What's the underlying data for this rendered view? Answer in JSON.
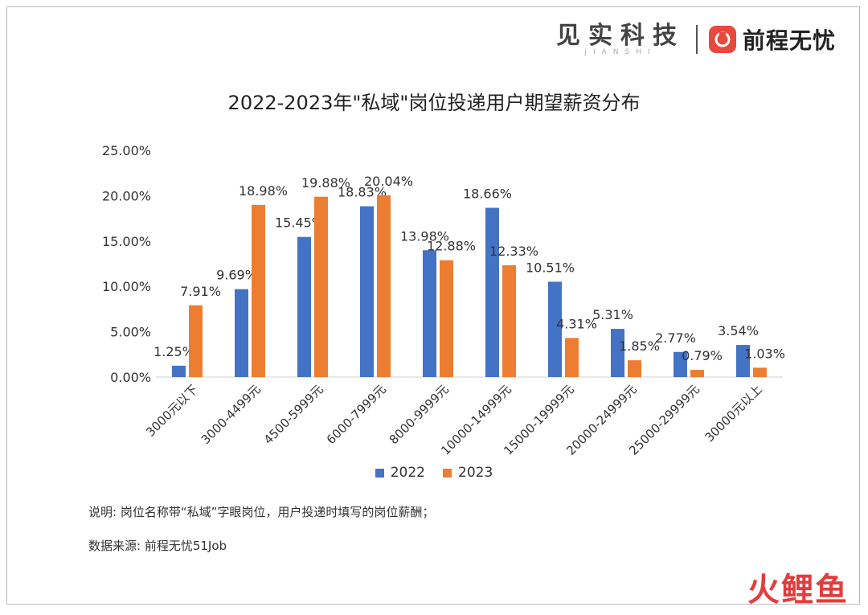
{
  "brand": {
    "left_name": "见实科技",
    "left_pinyin": "JIANSHI",
    "right_name": "前程无忧"
  },
  "notes": {
    "explain": "说明: 岗位名称带“私域”字眼岗位，用户投递时填写的岗位薪酬；",
    "source": "数据来源: 前程无忧51Job"
  },
  "watermark": "火鲤鱼",
  "chart_data": {
    "type": "bar",
    "title": "2022-2023年\"私域\"岗位投递用户期望薪资分布",
    "categories": [
      "3000元以下",
      "3000-4499元",
      "4500-5999元",
      "6000-7999元",
      "8000-9999元",
      "10000-14999元",
      "15000-19999元",
      "20000-24999元",
      "25000-29999元",
      "30000元以上"
    ],
    "series": [
      {
        "name": "2022",
        "color": "#4472c4",
        "values": [
          1.25,
          9.69,
          15.45,
          18.83,
          13.98,
          18.66,
          10.51,
          5.31,
          2.77,
          3.54
        ],
        "labels": [
          "1.25%",
          "9.69%",
          "15.45%",
          "18.83%",
          "13.98%",
          "18.66%",
          "10.51%",
          "5.31%",
          "2.77%",
          "3.54%"
        ]
      },
      {
        "name": "2023",
        "color": "#ed7d31",
        "values": [
          7.91,
          18.98,
          19.88,
          20.04,
          12.88,
          12.33,
          4.31,
          1.85,
          0.79,
          1.03
        ],
        "labels": [
          "7.91%",
          "18.98%",
          "19.88%",
          "20.04%",
          "12.88%",
          "12.33%",
          "4.31%",
          "1.85%",
          "0.79%",
          "1.03%"
        ]
      }
    ],
    "ylim": [
      0,
      25
    ],
    "yticks": [
      "0.00%",
      "5.00%",
      "10.00%",
      "15.00%",
      "20.00%",
      "25.00%"
    ],
    "legend_position": "bottom",
    "grid": false
  }
}
